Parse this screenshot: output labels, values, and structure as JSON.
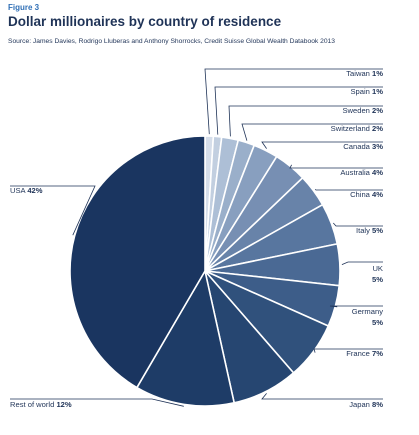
{
  "figure_label": "Figure 3",
  "title": "Dollar millionaires by country of residence",
  "source": "Source: James Davies, Rodrigo Lluberas and Anthony Shorrocks, Credit Suisse Global Wealth Databook 2013",
  "chart_data": {
    "type": "pie",
    "title": "Dollar millionaires by country of residence",
    "start": "12 o'clock",
    "direction": "clockwise",
    "slices": [
      {
        "label": "Taiwan",
        "value": 1,
        "display": "1%",
        "color": "#d6deea"
      },
      {
        "label": "Spain",
        "value": 1,
        "display": "1%",
        "color": "#c2cfe0"
      },
      {
        "label": "Sweden",
        "value": 2,
        "display": "2%",
        "color": "#adbfd6"
      },
      {
        "label": "Switzerland",
        "value": 2,
        "display": "2%",
        "color": "#9aafca"
      },
      {
        "label": "Canada",
        "value": 3,
        "display": "3%",
        "color": "#889fbf"
      },
      {
        "label": "Australia",
        "value": 4,
        "display": "4%",
        "color": "#778fb3"
      },
      {
        "label": "China",
        "value": 4,
        "display": "4%",
        "color": "#6883a9"
      },
      {
        "label": "Italy",
        "value": 5,
        "display": "5%",
        "color": "#58769f"
      },
      {
        "label": "UK",
        "value": 5,
        "display": "5%",
        "color": "#4a6994"
      },
      {
        "label": "Germany",
        "value": 5,
        "display": "5%",
        "color": "#3d5d89"
      },
      {
        "label": "France",
        "value": 7,
        "display": "7%",
        "color": "#30517c"
      },
      {
        "label": "Japan",
        "value": 8,
        "display": "8%",
        "color": "#264671"
      },
      {
        "label": "Rest of world",
        "value": 12,
        "display": "12%",
        "color": "#1e3c67"
      },
      {
        "label": "USA",
        "value": 42,
        "display": "42%",
        "color": "#1a3560"
      }
    ]
  }
}
